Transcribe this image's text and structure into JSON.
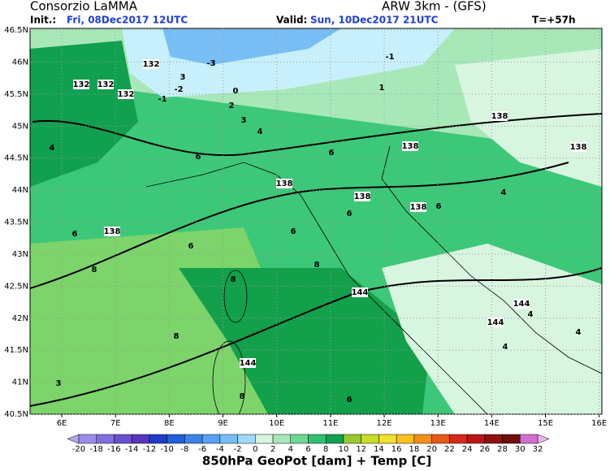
{
  "header": {
    "title": "Consorzio LaMMA",
    "model": "ARW 3km - (GFS)",
    "init_label": "Init.:",
    "init_value": "Fri, 08Dec2017 12UTC",
    "valid_label": "Valid:",
    "valid_value": "Sun, 10Dec2017 21UTC",
    "lead_time": "T=+57h"
  },
  "map": {
    "xlim": [
      5.41,
      16.05
    ],
    "ylim": [
      40.5,
      46.5
    ],
    "xticks": [
      {
        "value": 6,
        "label": "6E"
      },
      {
        "value": 7,
        "label": "7E"
      },
      {
        "value": 8,
        "label": "8E"
      },
      {
        "value": 9,
        "label": "9E"
      },
      {
        "value": 10,
        "label": "10E"
      },
      {
        "value": 11,
        "label": "11E"
      },
      {
        "value": 12,
        "label": "12E"
      },
      {
        "value": 13,
        "label": "13E"
      },
      {
        "value": 14,
        "label": "14E"
      },
      {
        "value": 15,
        "label": "15E"
      },
      {
        "value": 16,
        "label": "16E"
      }
    ],
    "yticks": [
      {
        "value": 40.5,
        "label": "40.5N"
      },
      {
        "value": 41,
        "label": "41N"
      },
      {
        "value": 41.5,
        "label": "41.5N"
      },
      {
        "value": 42,
        "label": "42N"
      },
      {
        "value": 42.5,
        "label": "42.5N"
      },
      {
        "value": 43,
        "label": "43N"
      },
      {
        "value": 43.5,
        "label": "43.5N"
      },
      {
        "value": 44,
        "label": "44N"
      },
      {
        "value": 44.5,
        "label": "44.5N"
      },
      {
        "value": 45,
        "label": "45N"
      },
      {
        "value": 45.5,
        "label": "45.5N"
      },
      {
        "value": 46,
        "label": "46N"
      },
      {
        "value": 46.5,
        "label": "46.5N"
      }
    ],
    "contour_labels": [
      "132",
      "132",
      "132",
      "132",
      "138",
      "138",
      "138",
      "138",
      "138",
      "138",
      "138",
      "144",
      "144",
      "144",
      "144",
      "-1",
      "-2",
      "-3",
      "-1",
      "0",
      "1",
      "2",
      "3",
      "3",
      "4",
      "4",
      "4",
      "4",
      "6",
      "6",
      "6",
      "6",
      "6",
      "6",
      "6",
      "8",
      "8",
      "8",
      "8",
      "8",
      "3",
      "4",
      "6",
      "4"
    ]
  },
  "colorbar": {
    "ticks": [
      -20,
      -18,
      -16,
      -14,
      -12,
      -10,
      -8,
      -6,
      -4,
      -2,
      0,
      2,
      4,
      6,
      8,
      10,
      12,
      14,
      16,
      18,
      20,
      22,
      24,
      26,
      28,
      30,
      32
    ],
    "colors": [
      "#9c8cec",
      "#8070e0",
      "#6a50d0",
      "#5a35c0",
      "#1e3cc8",
      "#2060d8",
      "#3c82e6",
      "#5aa0f0",
      "#78bef5",
      "#a0d8fa",
      "#d8f5e0",
      "#a8e8b8",
      "#6cd890",
      "#30c070",
      "#10a050",
      "#98c830",
      "#c8dc28",
      "#f0e030",
      "#f8c020",
      "#f09018",
      "#e85818",
      "#d82818",
      "#b81818",
      "#901010",
      "#700c0c",
      "#d070d0"
    ],
    "under_color": "#b4a8f0",
    "over_color": "#f0b0f0",
    "title": "850hPa GeoPot [dam] + Temp [C]"
  }
}
